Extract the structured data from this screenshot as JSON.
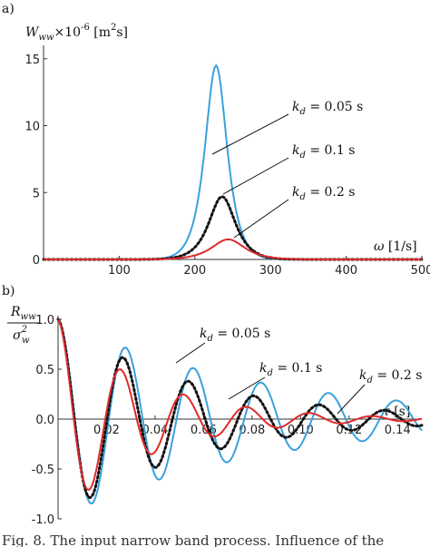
{
  "figure": {
    "caption": "Fig. 8. The input narrow band process. Influence of the"
  },
  "colors": {
    "blue": "#3aa0dc",
    "black": "#111111",
    "red": "#e02a2a"
  },
  "chart_data": [
    {
      "panel_label": "a)",
      "type": "line",
      "ylabel": "W_ww ×10^-6 [m²s]",
      "ylabel_parts": {
        "main": "W",
        "sub": "ww",
        "mult": "×10",
        "exp": "-6",
        "unit_open": " [m",
        "unit_exp": "2",
        "unit_close": "s]"
      },
      "xlabel_parts": {
        "sym": "ω",
        "unit": " [1/s]"
      },
      "xlim": [
        0,
        500
      ],
      "ylim": [
        0,
        16
      ],
      "xticks": [
        100,
        200,
        300,
        400,
        500
      ],
      "yticks": [
        0,
        5,
        10,
        15
      ],
      "grid": false,
      "series": [
        {
          "name": "kd = 0.05 s",
          "label_sym": "k",
          "label_sub": "d",
          "label_val": " = 0.05 s",
          "color": "#3aa0dc",
          "style": "solid",
          "peak_x": 228,
          "peak_y": 14.5,
          "width": 20
        },
        {
          "name": "kd = 0.1 s",
          "label_sym": "k",
          "label_sub": "d",
          "label_val": " = 0.1 s",
          "color": "#111111",
          "style": "dotted",
          "peak_x": 236,
          "peak_y": 4.7,
          "width": 24
        },
        {
          "name": "kd = 0.2 s",
          "label_sym": "k",
          "label_sub": "d",
          "label_val": " = 0.2 s",
          "color": "#e02a2a",
          "style": "solid",
          "peak_x": 244,
          "peak_y": 1.5,
          "width": 30
        }
      ]
    },
    {
      "panel_label": "b)",
      "type": "line",
      "ylabel_parts": {
        "num_main": "R",
        "num_sub": "ww",
        "den_main": "σ",
        "den_sub": "w",
        "den_sup": "2"
      },
      "xlabel_parts": {
        "sym": "τ",
        "unit": " [s]"
      },
      "xlim": [
        0,
        0.15
      ],
      "ylim": [
        -1.0,
        1.0
      ],
      "xticks": [
        "0.02",
        "0.04",
        "0.06",
        "0.08",
        "0.10",
        "0.12",
        "0.14"
      ],
      "yticks": [
        "1.0",
        "0.5",
        "0.0",
        "-0.5",
        "-1.0"
      ],
      "grid": false,
      "series": [
        {
          "name": "kd = 0.05 s",
          "label_sym": "k",
          "label_sub": "d",
          "label_val": " = 0.05 s",
          "color": "#3aa0dc",
          "style": "solid",
          "omega": 225,
          "decay": 12
        },
        {
          "name": "kd = 0.1 s",
          "label_sym": "k",
          "label_sub": "d",
          "label_val": " = 0.1 s",
          "color": "#111111",
          "style": "dotted",
          "omega": 233,
          "decay": 18
        },
        {
          "name": "kd = 0.2 s",
          "label_sym": "k",
          "label_sub": "d",
          "label_val": " = 0.2 s",
          "color": "#e02a2a",
          "style": "solid",
          "omega": 242,
          "decay": 27
        }
      ]
    }
  ]
}
